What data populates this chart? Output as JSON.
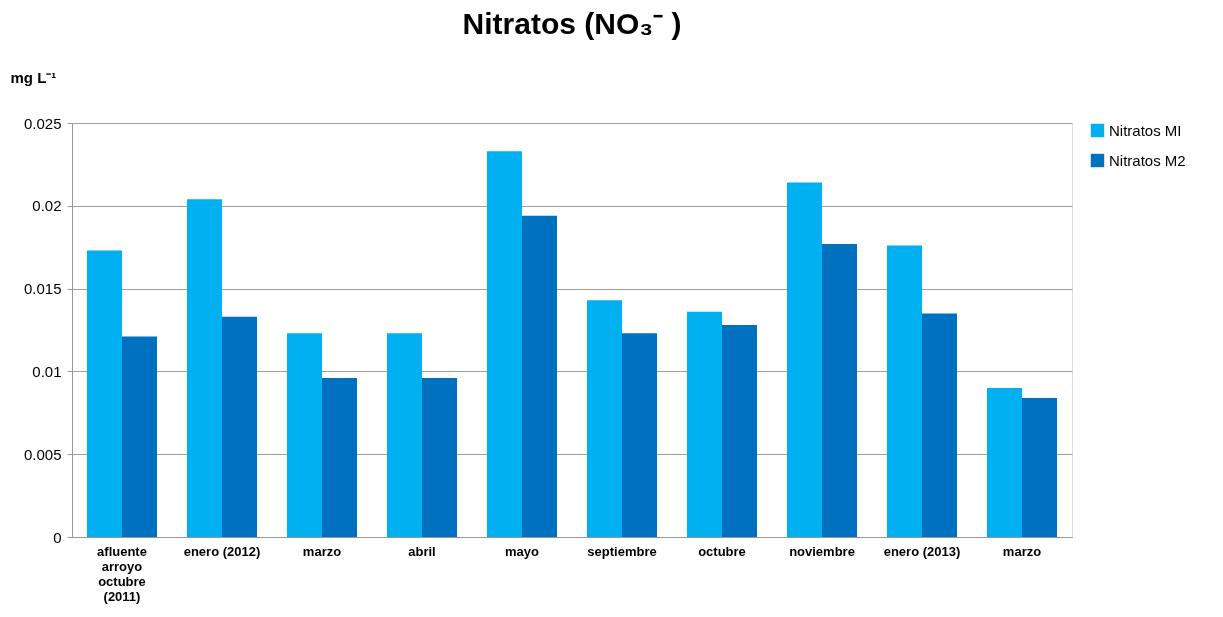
{
  "chart_data": {
    "type": "bar",
    "title": "Nitratos (NO₃⁻ )",
    "ylabel": "mg L⁻¹",
    "categories": [
      "afluente arroyo octubre (2011)",
      "enero (2012)",
      "marzo",
      "abril",
      "mayo",
      "septiembre",
      "octubre",
      "noviembre",
      "enero (2013)",
      "marzo"
    ],
    "series": [
      {
        "name": "Nitratos MI",
        "color": "#00b0f0",
        "values": [
          0.0173,
          0.0204,
          0.0123,
          0.0123,
          0.0233,
          0.0143,
          0.0136,
          0.0214,
          0.0176,
          0.009
        ]
      },
      {
        "name": "Nitratos M2",
        "color": "#0070c0",
        "values": [
          0.0121,
          0.0133,
          0.0096,
          0.0096,
          0.0194,
          0.0123,
          0.0128,
          0.0177,
          0.0135,
          0.0084
        ]
      }
    ],
    "ylim": [
      0,
      0.025
    ],
    "yticks": [
      0,
      0.005,
      0.01,
      0.015,
      0.02,
      0.025
    ],
    "grid": "y",
    "legend": "right"
  }
}
